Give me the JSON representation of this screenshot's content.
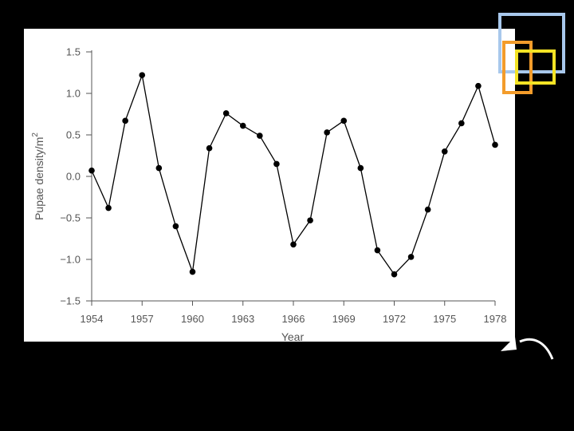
{
  "chart_data": {
    "type": "line",
    "title": "",
    "xlabel": "Year",
    "ylabel": "Pupae density/m",
    "ylabel_superscript": "2",
    "xlim": [
      1954,
      1978
    ],
    "ylim": [
      -1.5,
      1.5
    ],
    "x_ticks": [
      1954,
      1957,
      1960,
      1963,
      1966,
      1969,
      1972,
      1975,
      1978
    ],
    "y_ticks": [
      1.5,
      1.0,
      0.5,
      0.0,
      -0.5,
      -1.0,
      -1.5
    ],
    "y_tick_labels": [
      "1.5",
      "1.0",
      "0.5",
      "0.0",
      "−0.5",
      "−1.0",
      "−1.5"
    ],
    "grid": false,
    "series": [
      {
        "x": [
          1954,
          1955,
          1956,
          1957,
          1958,
          1959,
          1960,
          1961,
          1962,
          1963,
          1964,
          1965,
          1966,
          1967,
          1968,
          1969,
          1970,
          1971,
          1972,
          1973,
          1974,
          1975,
          1976,
          1977,
          1978
        ],
        "y": [
          0.07,
          -0.38,
          0.67,
          1.22,
          0.1,
          -0.6,
          -1.15,
          0.34,
          0.76,
          0.61,
          0.49,
          0.15,
          -0.82,
          -0.53,
          0.53,
          0.67,
          0.1,
          -0.89,
          -1.18,
          -0.97,
          -0.4,
          0.3,
          0.64,
          1.09,
          0.38
        ]
      }
    ],
    "colors": {
      "line": "#000000",
      "marker": "#000000",
      "axis": "#555555"
    }
  },
  "decoration": {
    "colors": {
      "blue": "#a8c8ec",
      "orange": "#f39c2b",
      "yellow": "#f3e325",
      "arrow": "#ffffff"
    }
  }
}
